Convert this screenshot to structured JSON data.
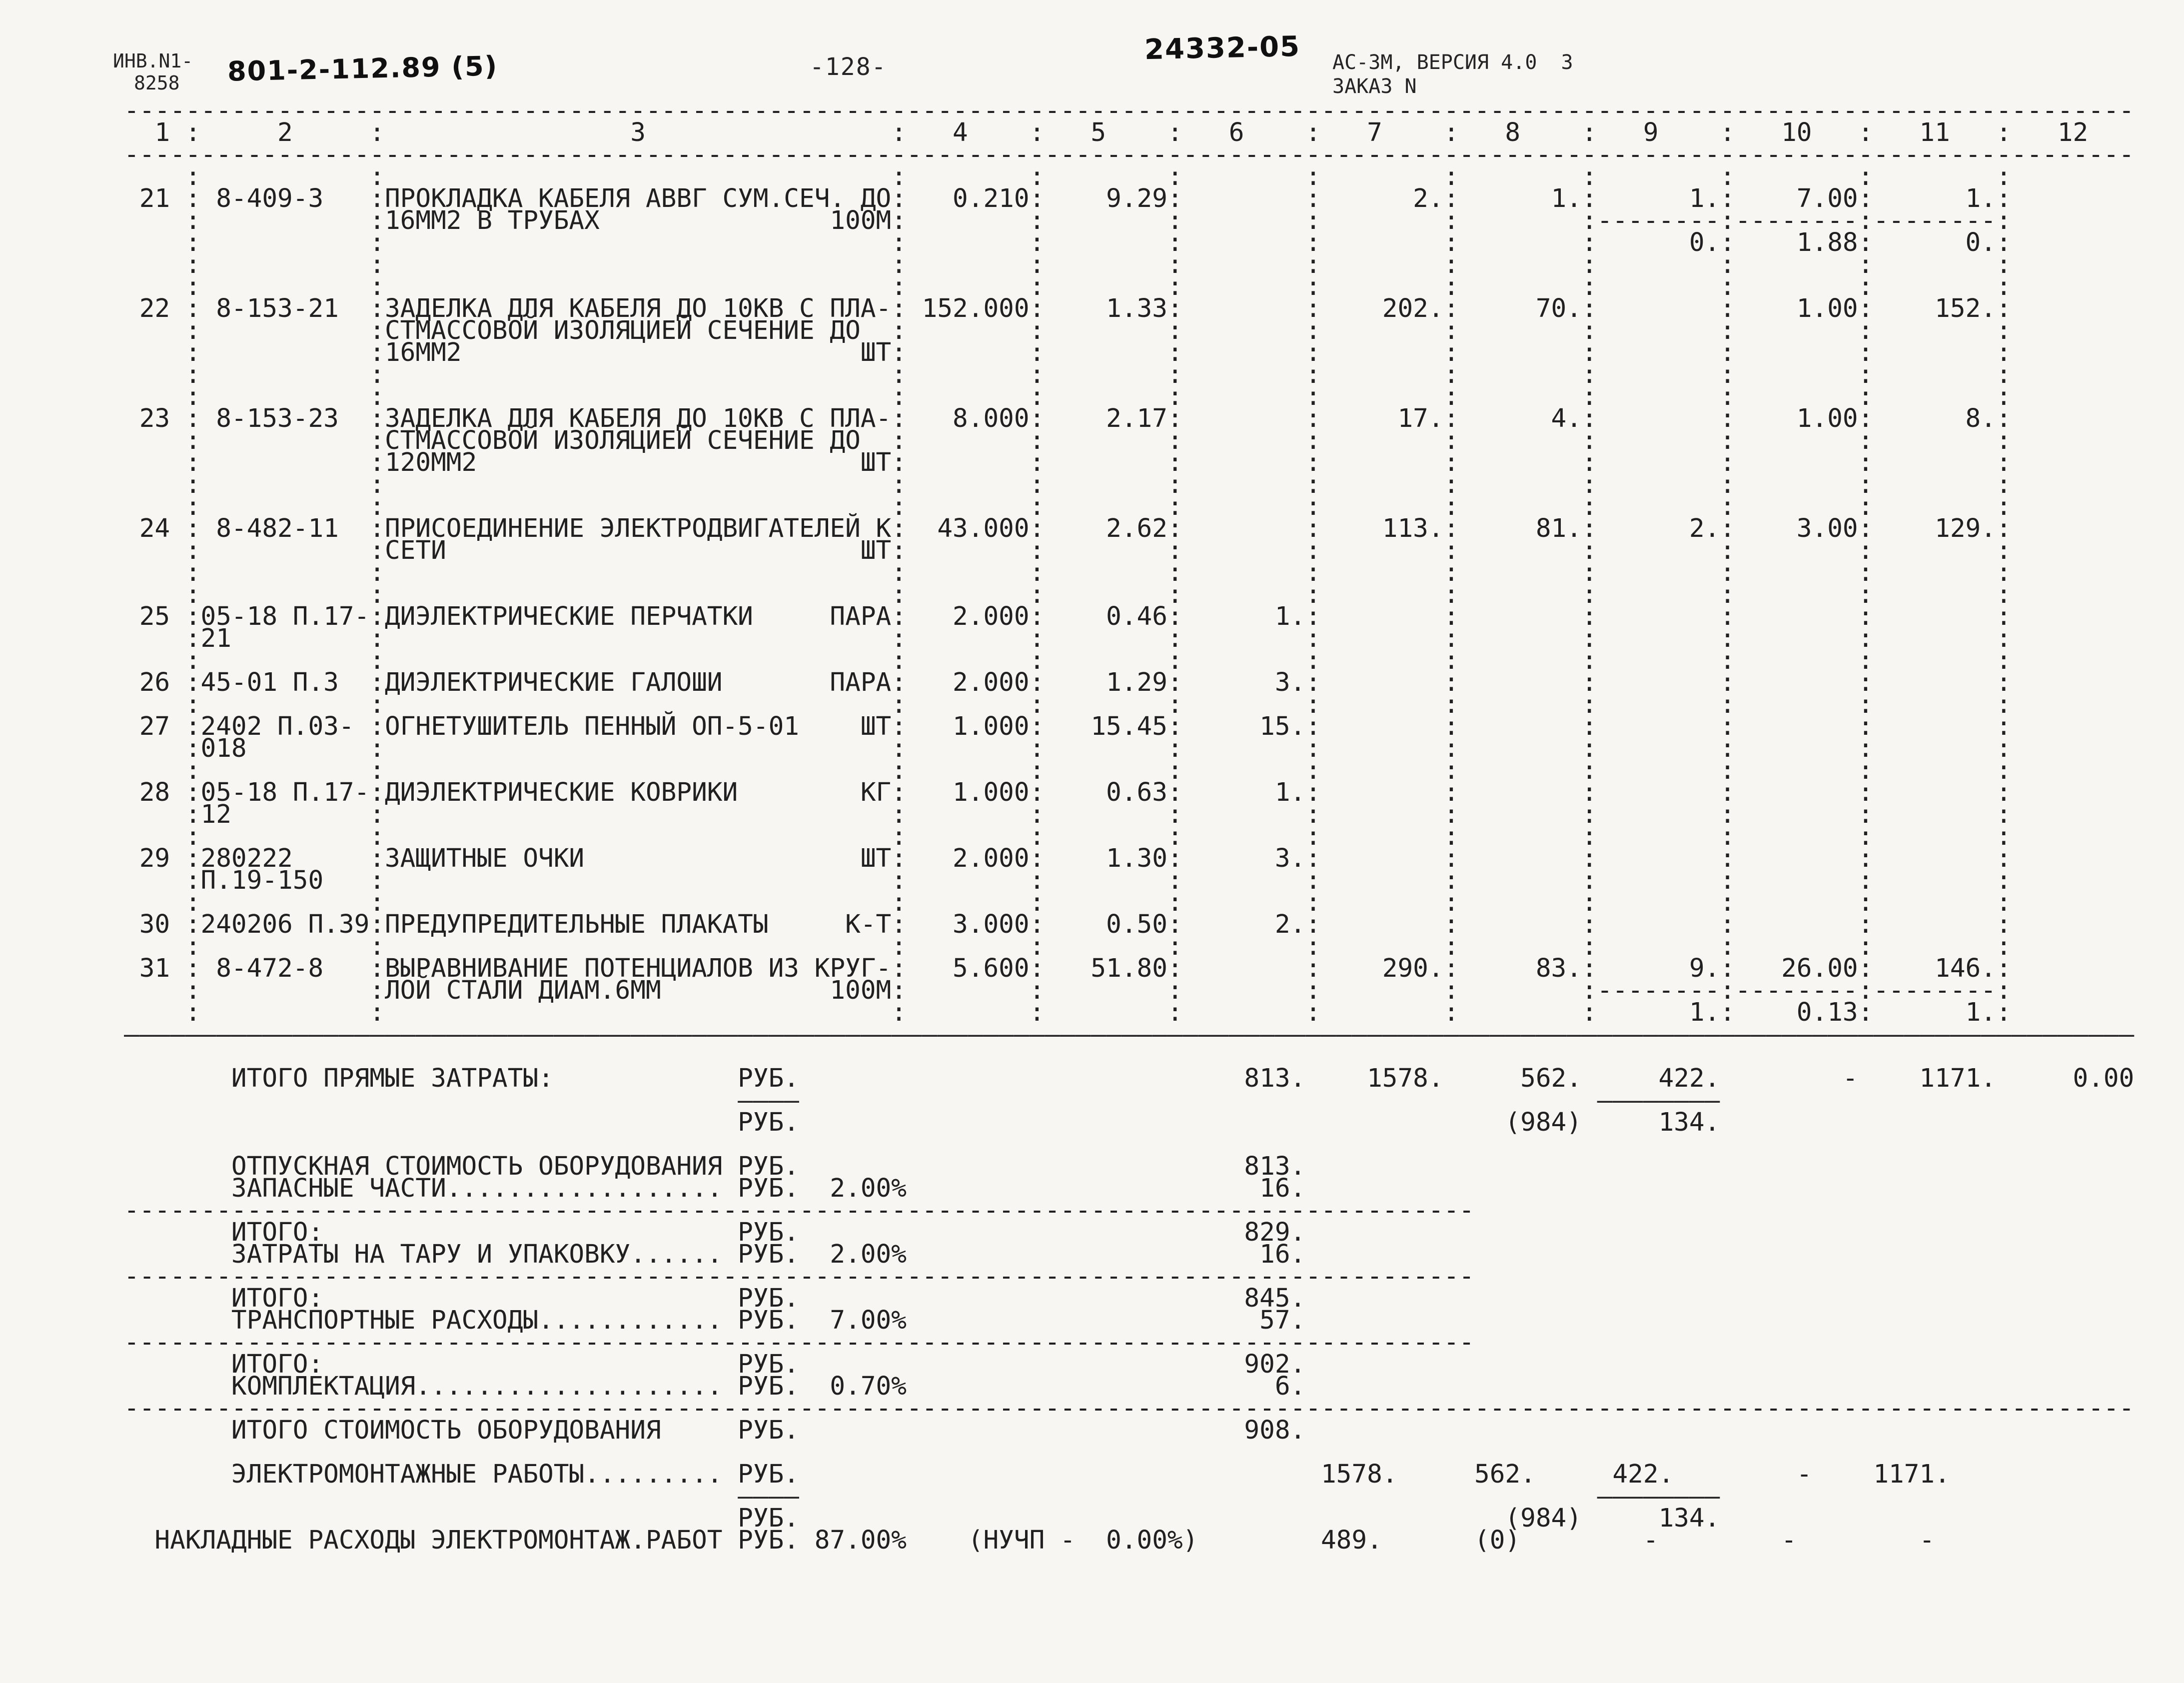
{
  "header": {
    "inv_label": "ИНВ.N1-",
    "inv_number": "8258",
    "doc_code": "801-2-112.89 (5)",
    "page_number": "-128-",
    "stamp": "24332-05",
    "system_version": "АС-3М, ВЕРСИЯ 4.0  3",
    "order_label": "ЗАКАЗ N"
  },
  "document": {
    "lines": [
      "-----------------------------------------------------------------------------------------------------------------------------------",
      "  1 :     2     :                3                :   4    :   5    :   6    :   7    :   8    :   9    :   10   :   11   :   12",
      "-----------------------------------------------------------------------------------------------------------------------------------",
      "    :           :                                 :        :        :        :        :        :        :        :        :",
      " 21 : 8-409-3   :ПРОКЛАДКА КАБЕЛЯ АВВГ СУМ.СЕЧ. ДО:   0.210:    9.29:        :      2.:      1.:      1.:    7.00:      1.:",
      "    :           :16ММ2 В ТРУБАХ               100М:        :        :        :        :        :--------:--------:--------:",
      "    :           :                                 :        :        :        :        :        :      0.:    1.88:      0.:",
      "    :           :                                 :        :        :        :        :        :        :        :        :",
      "    :           :                                 :        :        :        :        :        :        :        :        :",
      " 22 : 8-153-21  :ЗАДЕЛКА ДЛЯ КАБЕЛЯ ДО 10КВ С ПЛА-: 152.000:    1.33:        :    202.:     70.:        :    1.00:    152.:",
      "    :           :СТМАССОВОЙ ИЗОЛЯЦИЕЙ СЕЧЕНИЕ ДО  :        :        :        :        :        :        :        :        :",
      "    :           :16ММ2                          ШТ:        :        :        :        :        :        :        :        :",
      "    :           :                                 :        :        :        :        :        :        :        :        :",
      "    :           :                                 :        :        :        :        :        :        :        :        :",
      " 23 : 8-153-23  :ЗАДЕЛКА ДЛЯ КАБЕЛЯ ДО 10КВ С ПЛА-:   8.000:    2.17:        :     17.:      4.:        :    1.00:      8.:",
      "    :           :СТМАССОВОЙ ИЗОЛЯЦИЕЙ СЕЧЕНИЕ ДО  :        :        :        :        :        :        :        :        :",
      "    :           :120ММ2                         ШТ:        :        :        :        :        :        :        :        :",
      "    :           :                                 :        :        :        :        :        :        :        :        :",
      "    :           :                                 :        :        :        :        :        :        :        :        :",
      " 24 : 8-482-11  :ПРИСОЕДИНЕНИЕ ЭЛЕКТРОДВИГАТЕЛЕЙ К:  43.000:    2.62:        :    113.:     81.:      2.:    3.00:    129.:",
      "    :           :СЕТИ                           ШТ:        :        :        :        :        :        :        :        :",
      "    :           :                                 :        :        :        :        :        :        :        :        :",
      "    :           :                                 :        :        :        :        :        :        :        :        :",
      " 25 :05-18 П.17-:ДИЭЛЕКТРИЧЕСКИЕ ПЕРЧАТКИ     ПАРА:   2.000:    0.46:      1.:        :        :        :        :        :",
      "    :21         :                                 :        :        :        :        :        :        :        :        :",
      "    :           :                                 :        :        :        :        :        :        :        :        :",
      " 26 :45-01 П.3  :ДИЭЛЕКТРИЧЕСКИЕ ГАЛОШИ       ПАРА:   2.000:    1.29:      3.:        :        :        :        :        :",
      "    :           :                                 :        :        :        :        :        :        :        :        :",
      " 27 :2402 П.03- :ОГНЕТУШИТЕЛЬ ПЕННЫЙ ОП-5-01    ШТ:   1.000:   15.45:     15.:        :        :        :        :        :",
      "    :018        :                                 :        :        :        :        :        :        :        :        :",
      "    :           :                                 :        :        :        :        :        :        :        :        :",
      " 28 :05-18 П.17-:ДИЭЛЕКТРИЧЕСКИЕ КОВРИКИ        КГ:   1.000:    0.63:      1.:        :        :        :        :        :",
      "    :12         :                                 :        :        :        :        :        :        :        :        :",
      "    :           :                                 :        :        :        :        :        :        :        :        :",
      " 29 :280222     :ЗАЩИТНЫЕ ОЧКИ                  ШТ:   2.000:    1.30:      3.:        :        :        :        :        :",
      "    :П.19-150   :                                 :        :        :        :        :        :        :        :        :",
      "    :           :                                 :        :        :        :        :        :        :        :        :",
      " 30 :240206 П.39:ПРЕДУПРЕДИТЕЛЬНЫЕ ПЛАКАТЫ     К-Т:   3.000:    0.50:      2.:        :        :        :        :        :",
      "    :           :                                 :        :        :        :        :        :        :        :        :",
      " 31 : 8-472-8   :ВЫРАВНИВАНИЕ ПОТЕНЦИАЛОВ ИЗ КРУГ-:   5.600:   51.80:        :    290.:     83.:      9.:   26.00:    146.:",
      "    :           :ЛОЙ СТАЛИ ДИАМ.6ММ           100М:        :        :        :        :        :--------:--------:--------:",
      "    :           :                                 :        :        :        :        :        :      1.:    0.13:      1.:",
      "———————————————————————————————————————————————————————————————————————————————————————————————————————————————————————————————————",
      "",
      "       ИТОГО ПРЯМЫЕ ЗАТРАТЫ:            РУБ.                             813.    1578.     562.     422.        -    1171.     0.00",
      "                                        ————                                                    ————————",
      "                                        РУБ.                                              (984)     134.",
      "",
      "       ОТПУСКНАЯ СТОИМОСТЬ ОБОРУДОВАНИЯ РУБ.                             813.",
      "       ЗАПАСНЫЕ ЧАСТИ.................. РУБ.  2.00%                       16.",
      "----------------------------------------------------------------------------------------",
      "       ИТОГО:                           РУБ.                             829.",
      "       ЗАТРАТЫ НА ТАРУ И УПАКОВКУ...... РУБ.  2.00%                       16.",
      "----------------------------------------------------------------------------------------",
      "       ИТОГО:                           РУБ.                             845.",
      "       ТРАНСПОРТНЫЕ РАСХОДЫ............ РУБ.  7.00%                       57.",
      "----------------------------------------------------------------------------------------",
      "       ИТОГО:                           РУБ.                             902.",
      "       КОМПЛЕКТАЦИЯ.................... РУБ.  0.70%                        6.",
      "-----------------------------------------------------------------------------------------------------------------------------------",
      "       ИТОГО СТОИМОСТЬ ОБОРУДОВАНИЯ     РУБ.                             908.",
      "",
      "       ЭЛЕКТРОМОНТАЖНЫЕ РАБОТЫ......... РУБ.                                  1578.     562.     422.        -    1171.",
      "                                        ————                                                    ————————",
      "                                        РУБ.                                              (984)     134.",
      "  НАКЛАДНЫЕ РАСХОДЫ ЭЛЕКТРОМОНТАЖ.РАБОТ РУБ. 87.00%    (НУЧП -  0.00%)        489.      (0)        -        -        -"
    ]
  }
}
